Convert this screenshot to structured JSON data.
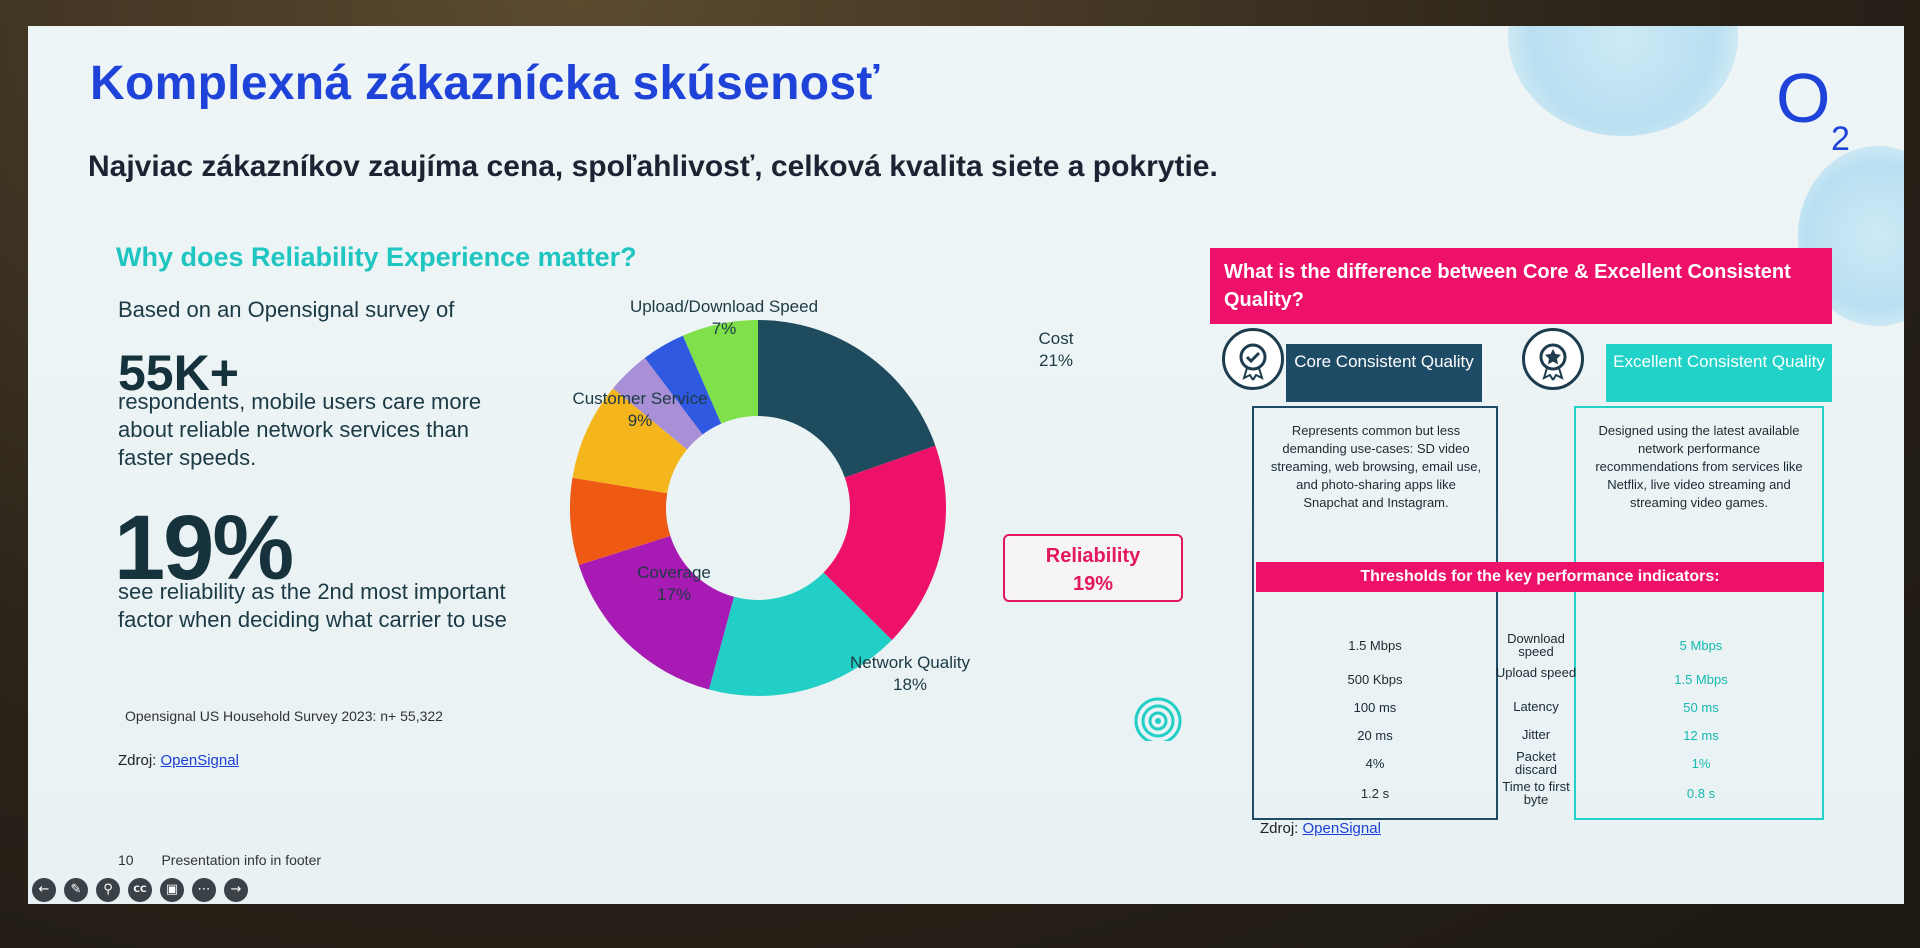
{
  "slide": {
    "title": "Komplexná zákaznícka skúsenosť",
    "subtitle": "Najviac zákazníkov zaujíma cena, spoľahlivosť, celková kvalita siete a pokrytie.",
    "logo_text": "O",
    "logo_sub": "2"
  },
  "left": {
    "heading": "Why does Reliability Experience matter?",
    "intro": "Based on an Opensignal survey of",
    "big_number": "55K+",
    "body": "respondents, mobile users care more about reliable network services than faster speeds.",
    "big_percent": "19%",
    "body2": "see reliability as the 2nd most important factor when deciding what carrier to use",
    "survey_note": "Opensignal US Household Survey 2023: n+ 55,322",
    "source_label": "Zdroj:",
    "source_link": "OpenSignal"
  },
  "chart_data": {
    "type": "pie",
    "donut": true,
    "slices": [
      {
        "label": "Cost",
        "value": 21,
        "pct": "21%",
        "color": "#1f4b5e"
      },
      {
        "label": "Reliability",
        "value": 19,
        "pct": "19%",
        "color": "#ee1169"
      },
      {
        "label": "Network Quality",
        "value": 18,
        "pct": "18%",
        "color": "#22cfc6"
      },
      {
        "label": "Coverage",
        "value": 17,
        "pct": "17%",
        "color": "#a71ab3"
      },
      {
        "label": "",
        "value": 8,
        "pct": "",
        "color": "#ee5a14"
      },
      {
        "label": "Customer Service",
        "value": 9,
        "pct": "9%",
        "color": "#f5b51c"
      },
      {
        "label": "",
        "value": 4,
        "pct": "",
        "color": "#a98fd6"
      },
      {
        "label": "",
        "value": 4,
        "pct": "",
        "color": "#2f59e0"
      },
      {
        "label": "Upload/Download Speed",
        "value": 7,
        "pct": "7%",
        "color": "#7fe04a"
      }
    ],
    "highlight": {
      "label": "Reliability",
      "pct": "19%"
    }
  },
  "right": {
    "heading": "What is the difference between Core & Excellent Consistent Quality?",
    "core_label": "Core Consistent Quality",
    "excellent_label": "Excellent Consistent Quality",
    "core_desc": "Represents common but less demanding use-cases: SD video streaming, web browsing, email use, and photo-sharing apps like Snapchat and Instagram.",
    "excellent_desc": "Designed using the latest available network performance recommendations from services like Netflix, live video streaming and streaming video games.",
    "thresholds_title": "Thresholds for the key performance indicators:",
    "kpis": [
      {
        "core": "1.5 Mbps",
        "name": "Download speed",
        "excellent": "5 Mbps"
      },
      {
        "core": "500 Kbps",
        "name": "Upload speed",
        "excellent": "1.5 Mbps"
      },
      {
        "core": "100 ms",
        "name": "Latency",
        "excellent": "50 ms"
      },
      {
        "core": "20 ms",
        "name": "Jitter",
        "excellent": "12 ms"
      },
      {
        "core": "4%",
        "name": "Packet discard",
        "excellent": "1%"
      },
      {
        "core": "1.2 s",
        "name": "Time to first byte",
        "excellent": "0.8 s"
      }
    ],
    "source_label": "Zdroj:",
    "source_link": "OpenSignal"
  },
  "footer": {
    "page_number": "10",
    "info": "Presentation info in footer"
  },
  "toolbar": {
    "items": [
      "prev-icon",
      "pen-icon",
      "search-icon",
      "cc-icon",
      "camera-icon",
      "more-icon",
      "next-icon"
    ],
    "cc_label": "CC"
  }
}
